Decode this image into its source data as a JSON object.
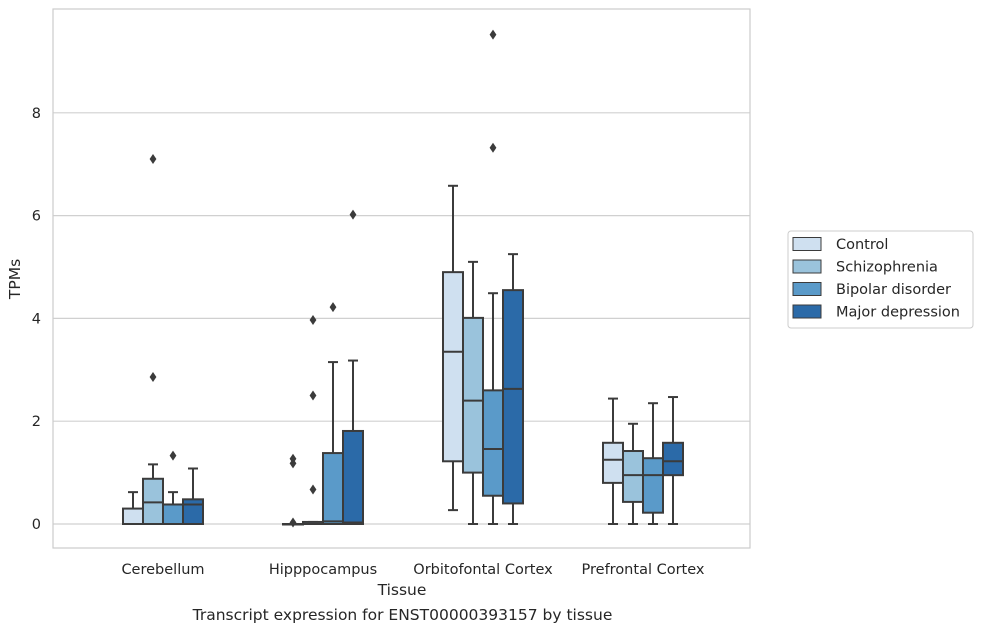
{
  "caption": "Transcript expression for ENST00000393157 by tissue",
  "chart_data": {
    "type": "box",
    "title": "",
    "xlabel": "Tissue",
    "ylabel": "TPMs",
    "ylim": [
      -0.45,
      9.9
    ],
    "yticks": [
      0,
      2,
      4,
      6,
      8
    ],
    "ytick_labels": [
      "0",
      "2",
      "4",
      "6",
      "8"
    ],
    "grid": "horizontal",
    "legend_position": "right",
    "categories": [
      "Cerebellum",
      "Hipppocampus",
      "Orbitofontal Cortex",
      "Prefrontal Cortex"
    ],
    "series": [
      {
        "name": "Control",
        "color": "#cfe0f0",
        "boxes": [
          {
            "whisker_low": 0,
            "q1": 0,
            "median": 0,
            "q3": 0.3,
            "whisker_high": 0.62,
            "outliers": []
          },
          {
            "whisker_low": 0,
            "q1": 0,
            "median": 0,
            "q3": 0,
            "whisker_high": 0,
            "outliers": [
              0.03,
              1.18,
              1.27
            ]
          },
          {
            "whisker_low": 0.27,
            "q1": 1.22,
            "median": 3.35,
            "q3": 4.9,
            "whisker_high": 6.58,
            "outliers": []
          },
          {
            "whisker_low": 0,
            "q1": 0.8,
            "median": 1.25,
            "q3": 1.58,
            "whisker_high": 2.44,
            "outliers": []
          }
        ]
      },
      {
        "name": "Schizophrenia",
        "color": "#9ac3dc",
        "boxes": [
          {
            "whisker_low": 0,
            "q1": 0,
            "median": 0.42,
            "q3": 0.88,
            "whisker_high": 1.16,
            "outliers": [
              2.86,
              7.1
            ]
          },
          {
            "whisker_low": 0,
            "q1": 0,
            "median": 0,
            "q3": 0.04,
            "whisker_high": 0.04,
            "outliers": [
              0.67,
              2.5,
              3.97
            ]
          },
          {
            "whisker_low": 0,
            "q1": 1.0,
            "median": 2.4,
            "q3": 4.01,
            "whisker_high": 5.1,
            "outliers": []
          },
          {
            "whisker_low": 0,
            "q1": 0.43,
            "median": 0.95,
            "q3": 1.42,
            "whisker_high": 1.95,
            "outliers": []
          }
        ]
      },
      {
        "name": "Bipolar disorder",
        "color": "#5a9ac9",
        "boxes": [
          {
            "whisker_low": 0,
            "q1": 0,
            "median": 0.38,
            "q3": 0.38,
            "whisker_high": 0.62,
            "outliers": [
              1.33
            ]
          },
          {
            "whisker_low": 0,
            "q1": 0,
            "median": 0.05,
            "q3": 1.38,
            "whisker_high": 3.15,
            "outliers": [
              4.22
            ]
          },
          {
            "whisker_low": 0,
            "q1": 0.55,
            "median": 1.46,
            "q3": 2.6,
            "whisker_high": 4.49,
            "outliers": [
              7.32,
              9.52
            ]
          },
          {
            "whisker_low": 0,
            "q1": 0.22,
            "median": 0.95,
            "q3": 1.28,
            "whisker_high": 2.35,
            "outliers": []
          }
        ]
      },
      {
        "name": "Major depression",
        "color": "#2b6aa8",
        "boxes": [
          {
            "whisker_low": 0,
            "q1": 0,
            "median": 0.38,
            "q3": 0.48,
            "whisker_high": 1.08,
            "outliers": []
          },
          {
            "whisker_low": 0,
            "q1": 0,
            "median": 0.03,
            "q3": 1.81,
            "whisker_high": 3.18,
            "outliers": [
              6.02
            ]
          },
          {
            "whisker_low": 0,
            "q1": 0.4,
            "median": 2.63,
            "q3": 4.55,
            "whisker_high": 5.25,
            "outliers": []
          },
          {
            "whisker_low": 0,
            "q1": 0.95,
            "median": 1.22,
            "q3": 1.58,
            "whisker_high": 2.47,
            "outliers": []
          }
        ]
      }
    ]
  }
}
